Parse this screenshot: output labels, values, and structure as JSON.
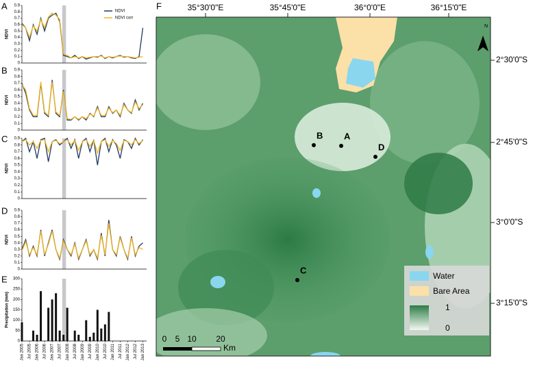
{
  "chart_data": [
    {
      "type": "line",
      "label": "A",
      "y_label": "NDVI",
      "legend": "upper right",
      "x": [
        "2005-01",
        "2005-04",
        "2005-07",
        "2005-10",
        "2006-01",
        "2006-04",
        "2006-07",
        "2006-10",
        "2007-01",
        "2007-04",
        "2007-07",
        "2007-10",
        "2008-01",
        "2008-04",
        "2008-07",
        "2008-10",
        "2009-01",
        "2009-04",
        "2009-07",
        "2009-10",
        "2010-01",
        "2010-04",
        "2010-07",
        "2010-10",
        "2011-01",
        "2011-04",
        "2011-07",
        "2011-10",
        "2012-01",
        "2012-04",
        "2012-07",
        "2012-10",
        "2013-01"
      ],
      "xlim": [
        "2005-01",
        "2013-04"
      ],
      "highlight": [
        "2007-09",
        "2007-12"
      ],
      "ylim": [
        0,
        0.9
      ],
      "yticks": [
        0,
        0.1,
        0.2,
        0.3,
        0.4,
        0.5,
        0.6,
        0.7,
        0.8,
        0.9
      ],
      "series": [
        {
          "name": "NDVI",
          "color": "#1f3a5f",
          "values": [
            0.62,
            0.55,
            0.35,
            0.6,
            0.45,
            0.7,
            0.5,
            0.7,
            0.75,
            0.78,
            0.65,
            0.12,
            0.1,
            0.08,
            0.12,
            0.07,
            0.1,
            0.06,
            0.08,
            0.1,
            0.09,
            0.12,
            0.07,
            0.1,
            0.08,
            0.1,
            0.12,
            0.09,
            0.1,
            0.08,
            0.07,
            0.1,
            0.55
          ]
        },
        {
          "name": "NDVI corr",
          "color": "#f2b51c",
          "values": [
            0.6,
            0.55,
            0.4,
            0.58,
            0.5,
            0.68,
            0.55,
            0.72,
            0.78,
            0.75,
            0.68,
            0.14,
            0.12,
            0.08,
            0.1,
            0.08,
            0.1,
            0.08,
            0.09,
            0.1,
            0.1,
            0.11,
            0.08,
            0.1,
            0.09,
            0.1,
            0.11,
            0.1,
            0.1,
            0.09,
            0.08,
            0.09,
            0.1
          ]
        }
      ]
    },
    {
      "type": "line",
      "label": "B",
      "y_label": "NDVI",
      "x": [
        "2005-01",
        "2005-04",
        "2005-07",
        "2005-10",
        "2006-01",
        "2006-04",
        "2006-07",
        "2006-10",
        "2007-01",
        "2007-04",
        "2007-07",
        "2007-10",
        "2008-01",
        "2008-04",
        "2008-07",
        "2008-10",
        "2009-01",
        "2009-04",
        "2009-07",
        "2009-10",
        "2010-01",
        "2010-04",
        "2010-07",
        "2010-10",
        "2011-01",
        "2011-04",
        "2011-07",
        "2011-10",
        "2012-01",
        "2012-04",
        "2012-07",
        "2012-10",
        "2013-01"
      ],
      "xlim": [
        "2005-01",
        "2013-04"
      ],
      "highlight": [
        "2007-09",
        "2007-12"
      ],
      "ylim": [
        0,
        0.9
      ],
      "yticks": [
        0,
        0.1,
        0.2,
        0.3,
        0.4,
        0.5,
        0.6,
        0.7,
        0.8,
        0.9
      ],
      "series": [
        {
          "name": "NDVI",
          "color": "#1f3a5f",
          "values": [
            0.7,
            0.55,
            0.3,
            0.2,
            0.2,
            0.7,
            0.25,
            0.2,
            0.75,
            0.25,
            0.2,
            0.6,
            0.15,
            0.15,
            0.2,
            0.15,
            0.2,
            0.15,
            0.25,
            0.2,
            0.35,
            0.2,
            0.2,
            0.35,
            0.25,
            0.3,
            0.2,
            0.4,
            0.3,
            0.25,
            0.45,
            0.3,
            0.4
          ]
        },
        {
          "name": "NDVI corr",
          "color": "#f2b51c",
          "values": [
            0.68,
            0.6,
            0.32,
            0.22,
            0.22,
            0.72,
            0.27,
            0.22,
            0.72,
            0.27,
            0.22,
            0.58,
            0.17,
            0.16,
            0.2,
            0.16,
            0.2,
            0.17,
            0.24,
            0.21,
            0.33,
            0.22,
            0.22,
            0.33,
            0.26,
            0.3,
            0.22,
            0.38,
            0.3,
            0.26,
            0.42,
            0.32,
            0.38
          ]
        }
      ]
    },
    {
      "type": "line",
      "label": "C",
      "y_label": "NDVI",
      "x": [
        "2005-01",
        "2005-04",
        "2005-07",
        "2005-10",
        "2006-01",
        "2006-04",
        "2006-07",
        "2006-10",
        "2007-01",
        "2007-04",
        "2007-07",
        "2007-10",
        "2008-01",
        "2008-04",
        "2008-07",
        "2008-10",
        "2009-01",
        "2009-04",
        "2009-07",
        "2009-10",
        "2010-01",
        "2010-04",
        "2010-07",
        "2010-10",
        "2011-01",
        "2011-04",
        "2011-07",
        "2011-10",
        "2012-01",
        "2012-04",
        "2012-07",
        "2012-10",
        "2013-01"
      ],
      "xlim": [
        "2005-01",
        "2013-04"
      ],
      "highlight": [
        "2007-09",
        "2007-12"
      ],
      "ylim": [
        0,
        0.9
      ],
      "yticks": [
        0,
        0.1,
        0.2,
        0.3,
        0.4,
        0.5,
        0.6,
        0.7,
        0.8,
        0.9
      ],
      "series": [
        {
          "name": "NDVI",
          "color": "#1f3a5f",
          "values": [
            0.85,
            0.9,
            0.7,
            0.85,
            0.6,
            0.88,
            0.9,
            0.55,
            0.85,
            0.88,
            0.8,
            0.85,
            0.9,
            0.75,
            0.88,
            0.6,
            0.85,
            0.9,
            0.7,
            0.88,
            0.5,
            0.85,
            0.9,
            0.7,
            0.88,
            0.8,
            0.6,
            0.88,
            0.85,
            0.75,
            0.9,
            0.8,
            0.88
          ]
        },
        {
          "name": "NDVI corr",
          "color": "#f2b51c",
          "values": [
            0.85,
            0.88,
            0.8,
            0.85,
            0.75,
            0.87,
            0.88,
            0.7,
            0.85,
            0.87,
            0.82,
            0.85,
            0.88,
            0.8,
            0.87,
            0.72,
            0.85,
            0.88,
            0.78,
            0.87,
            0.68,
            0.85,
            0.88,
            0.78,
            0.87,
            0.82,
            0.72,
            0.87,
            0.85,
            0.8,
            0.88,
            0.82,
            0.87
          ]
        }
      ]
    },
    {
      "type": "line",
      "label": "D",
      "y_label": "NDVI",
      "x": [
        "2005-01",
        "2005-04",
        "2005-07",
        "2005-10",
        "2006-01",
        "2006-04",
        "2006-07",
        "2006-10",
        "2007-01",
        "2007-04",
        "2007-07",
        "2007-10",
        "2008-01",
        "2008-04",
        "2008-07",
        "2008-10",
        "2009-01",
        "2009-04",
        "2009-07",
        "2009-10",
        "2010-01",
        "2010-04",
        "2010-07",
        "2010-10",
        "2011-01",
        "2011-04",
        "2011-07",
        "2011-10",
        "2012-01",
        "2012-04",
        "2012-07",
        "2012-10",
        "2013-01"
      ],
      "xlim": [
        "2005-01",
        "2013-04"
      ],
      "highlight": [
        "2007-09",
        "2007-12"
      ],
      "ylim": [
        0,
        0.9
      ],
      "yticks": [
        0,
        0.1,
        0.2,
        0.3,
        0.4,
        0.5,
        0.6,
        0.7,
        0.8,
        0.9
      ],
      "series": [
        {
          "name": "NDVI",
          "color": "#1f3a5f",
          "values": [
            0.3,
            0.45,
            0.2,
            0.35,
            0.2,
            0.6,
            0.2,
            0.4,
            0.6,
            0.3,
            0.15,
            0.45,
            0.3,
            0.2,
            0.4,
            0.15,
            0.3,
            0.45,
            0.2,
            0.3,
            0.15,
            0.55,
            0.2,
            0.75,
            0.3,
            0.2,
            0.5,
            0.3,
            0.15,
            0.5,
            0.2,
            0.35,
            0.4
          ]
        },
        {
          "name": "NDVI corr",
          "color": "#f2b51c",
          "values": [
            0.28,
            0.42,
            0.22,
            0.33,
            0.22,
            0.58,
            0.22,
            0.38,
            0.58,
            0.3,
            0.17,
            0.43,
            0.3,
            0.22,
            0.38,
            0.17,
            0.3,
            0.43,
            0.22,
            0.3,
            0.17,
            0.52,
            0.22,
            0.7,
            0.3,
            0.22,
            0.48,
            0.3,
            0.17,
            0.48,
            0.22,
            0.33,
            0.3
          ]
        }
      ]
    },
    {
      "type": "bar",
      "label": "E",
      "y_label": "Precipitation (mm)",
      "x": [
        "2005-01",
        "2005-04",
        "2005-07",
        "2005-10",
        "2006-01",
        "2006-04",
        "2006-07",
        "2006-10",
        "2007-01",
        "2007-04",
        "2007-07",
        "2007-10",
        "2008-01",
        "2008-04",
        "2008-07",
        "2008-10",
        "2009-01",
        "2009-04",
        "2009-07",
        "2009-10",
        "2010-01",
        "2010-04",
        "2010-07",
        "2010-10",
        "2011-01",
        "2011-04",
        "2011-07",
        "2011-10",
        "2012-01",
        "2012-04",
        "2012-07",
        "2012-10",
        "2013-01"
      ],
      "xlim": [
        "2005-01",
        "2013-04"
      ],
      "highlight": [
        "2007-09",
        "2007-12"
      ],
      "ylim": [
        0,
        300
      ],
      "yticks": [
        0,
        50,
        100,
        150,
        200,
        250,
        300
      ],
      "color": "#111111",
      "xticks": [
        {
          "value": "2005-01",
          "label": "Jan 2005"
        },
        {
          "value": "2005-07",
          "label": "Jul 2005"
        },
        {
          "value": "2006-01",
          "label": "Jan 2006"
        },
        {
          "value": "2006-07",
          "label": "Jul 2006"
        },
        {
          "value": "2007-01",
          "label": "Jan 2007"
        },
        {
          "value": "2007-07",
          "label": "Jul 2007"
        },
        {
          "value": "2008-01",
          "label": "Jan 2008"
        },
        {
          "value": "2008-07",
          "label": "Jul 2008"
        },
        {
          "value": "2009-01",
          "label": "Jan 2009"
        },
        {
          "value": "2009-07",
          "label": "Jul 2009"
        },
        {
          "value": "2010-01",
          "label": "Jan 2010"
        },
        {
          "value": "2010-07",
          "label": "Jul 2010"
        },
        {
          "value": "2011-01",
          "label": "Jan 2011"
        },
        {
          "value": "2011-07",
          "label": "Jul 2011"
        },
        {
          "value": "2012-01",
          "label": "Jan 2012"
        },
        {
          "value": "2012-07",
          "label": "Jul 2012"
        },
        {
          "value": "2013-01",
          "label": "Jan 2013"
        }
      ],
      "values": [
        90,
        0,
        0,
        50,
        30,
        240,
        0,
        160,
        200,
        230,
        50,
        30,
        160,
        0,
        50,
        30,
        0,
        100,
        20,
        40,
        150,
        60,
        80,
        140,
        0,
        0,
        0,
        0,
        0,
        0,
        0,
        0,
        0
      ]
    }
  ],
  "map": {
    "label": "F",
    "lon_labels": [
      "35°30'0\"E",
      "35°45'0\"E",
      "36°0'0\"E",
      "36°15'0\"E"
    ],
    "lat_labels": [
      "2°30'0\"S",
      "2°45'0\"S",
      "3°0'0\"S",
      "3°15'0\"S"
    ],
    "sites": [
      "A",
      "B",
      "C",
      "D"
    ],
    "legend": [
      "Water",
      "Bare Area"
    ],
    "scale_max": 1,
    "scale_min": 0,
    "scale_bar": [
      0,
      5,
      10,
      20
    ],
    "scale_unit": "Km",
    "north": "N"
  }
}
